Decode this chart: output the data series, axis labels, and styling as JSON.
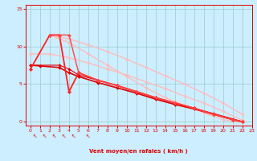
{
  "background_color": "#cceeff",
  "grid_color": "#99cccc",
  "xlabel": "Vent moyen/en rafales ( km/h )",
  "xlabel_color": "#dd0000",
  "tick_color": "#dd0000",
  "xlim": [
    -0.5,
    23
  ],
  "ylim": [
    -0.5,
    15.5
  ],
  "xticks": [
    0,
    1,
    2,
    3,
    4,
    5,
    6,
    7,
    8,
    9,
    10,
    11,
    12,
    13,
    14,
    15,
    16,
    17,
    18,
    19,
    20,
    21,
    22,
    23
  ],
  "yticks": [
    0,
    5,
    10,
    15
  ],
  "lines": [
    {
      "x": [
        0,
        2,
        4,
        6,
        8,
        10,
        12,
        14,
        16,
        18,
        20,
        22
      ],
      "y": [
        9.0,
        9.0,
        8.5,
        7.8,
        7.0,
        6.2,
        5.3,
        4.4,
        3.4,
        2.5,
        1.4,
        0.2
      ],
      "color": "#ffbbbb",
      "lw": 1.0,
      "marker": "D",
      "ms": 1.8
    },
    {
      "x": [
        2,
        4,
        6,
        8,
        10,
        12,
        14,
        16,
        18,
        20,
        22
      ],
      "y": [
        11.5,
        11.0,
        10.2,
        9.3,
        8.3,
        7.2,
        6.1,
        5.0,
        3.8,
        2.5,
        1.0
      ],
      "color": "#ffbbbb",
      "lw": 1.0,
      "marker": "D",
      "ms": 1.8
    },
    {
      "x": [
        2,
        4,
        6,
        8,
        10,
        12,
        14,
        16,
        18,
        20,
        21,
        22
      ],
      "y": [
        11.5,
        10.5,
        9.0,
        7.5,
        6.0,
        4.5,
        3.2,
        2.2,
        1.2,
        0.3,
        0.1,
        0.0
      ],
      "color": "#ffbbbb",
      "lw": 1.0,
      "marker": "D",
      "ms": 1.8
    },
    {
      "x": [
        0,
        1,
        3,
        4,
        5,
        7,
        9,
        11,
        13,
        15,
        17,
        19,
        21,
        22
      ],
      "y": [
        7.5,
        7.4,
        7.2,
        6.5,
        6.0,
        5.2,
        4.5,
        3.8,
        3.0,
        2.3,
        1.7,
        1.0,
        0.3,
        0.0
      ],
      "color": "#dd0000",
      "lw": 1.2,
      "marker": "D",
      "ms": 2.0
    },
    {
      "x": [
        0,
        3,
        4,
        5,
        7,
        9,
        11,
        13,
        15,
        17,
        19,
        21,
        22
      ],
      "y": [
        7.5,
        7.5,
        7.0,
        6.2,
        5.5,
        4.8,
        4.0,
        3.2,
        2.5,
        1.8,
        1.1,
        0.4,
        0.0
      ],
      "color": "#dd0000",
      "lw": 0.8,
      "marker": "D",
      "ms": 1.8
    },
    {
      "x": [
        0,
        2,
        3,
        4,
        5,
        7,
        9,
        11,
        13,
        15,
        17,
        19,
        21,
        22
      ],
      "y": [
        7.0,
        11.5,
        11.5,
        4.0,
        6.5,
        5.5,
        4.8,
        4.0,
        3.2,
        2.5,
        1.8,
        1.0,
        0.3,
        0.0
      ],
      "color": "#ff2222",
      "lw": 1.3,
      "marker": "D",
      "ms": 2.2
    },
    {
      "x": [
        2,
        3,
        4,
        5,
        7,
        9,
        11,
        13,
        15,
        17,
        19,
        21,
        22
      ],
      "y": [
        11.5,
        11.5,
        11.5,
        6.5,
        5.5,
        4.8,
        4.0,
        3.2,
        2.5,
        1.8,
        1.0,
        0.3,
        0.0
      ],
      "color": "#ff4444",
      "lw": 1.0,
      "marker": "D",
      "ms": 2.0
    }
  ],
  "wind_symbols_x": [
    0.5,
    1.5,
    2.5,
    3.5,
    4.5,
    6.0
  ],
  "wind_symbol_char": "↑"
}
